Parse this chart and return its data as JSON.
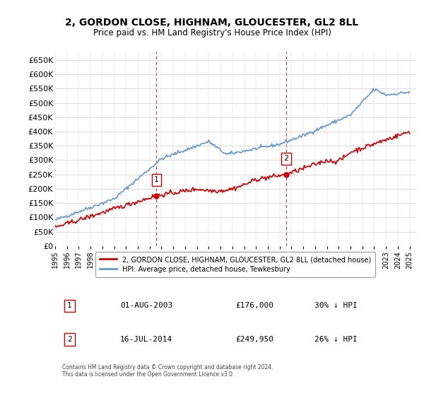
{
  "title": "2, GORDON CLOSE, HIGHNAM, GLOUCESTER, GL2 8LL",
  "subtitle": "Price paid vs. HM Land Registry's House Price Index (HPI)",
  "legend_label_red": "2, GORDON CLOSE, HIGHNAM, GLOUCESTER, GL2 8LL (detached house)",
  "legend_label_blue": "HPI: Average price, detached house, Tewkesbury",
  "sale1_label": "1",
  "sale1_date": "01-AUG-2003",
  "sale1_price": "£176,000",
  "sale1_hpi": "30% ↓ HPI",
  "sale1_year": 2003.58,
  "sale1_value": 176000,
  "sale2_label": "2",
  "sale2_date": "16-JUL-2014",
  "sale2_price": "£249,950",
  "sale2_hpi": "26% ↓ HPI",
  "sale2_year": 2014.54,
  "sale2_value": 249950,
  "footer": "Contains HM Land Registry data © Crown copyright and database right 2024.\nThis data is licensed under the Open Government Licence v3.0.",
  "ylim": [
    0,
    680000
  ],
  "yticks": [
    0,
    50000,
    100000,
    150000,
    200000,
    250000,
    300000,
    350000,
    400000,
    450000,
    500000,
    550000,
    600000,
    650000
  ],
  "background_color": "#ffffff",
  "grid_color": "#cccccc",
  "red_color": "#cc0000",
  "blue_color": "#6699cc",
  "sale_marker_color": "#cc0000",
  "vline_color": "#cc0000"
}
